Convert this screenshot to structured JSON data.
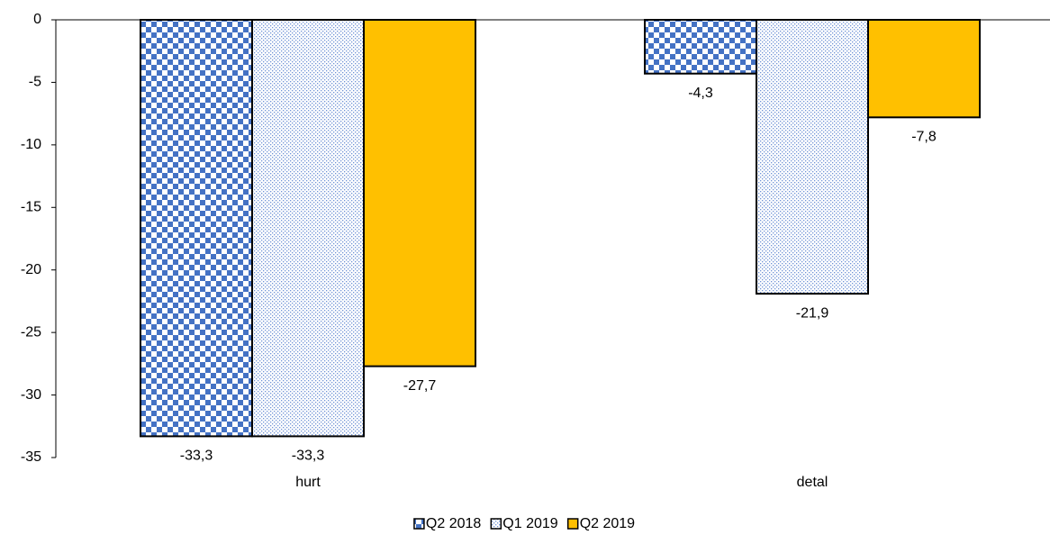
{
  "chart_data": {
    "type": "bar",
    "categories": [
      "hurt",
      "detal"
    ],
    "series": [
      {
        "name": "Q2 2018",
        "color": "#4472c4",
        "pattern": "checker",
        "values": [
          -33.3,
          -4.3
        ],
        "value_labels": [
          "-33,3",
          "-4,3"
        ]
      },
      {
        "name": "Q1 2019",
        "color": "#4472c4",
        "pattern": "dots",
        "values": [
          -33.3,
          -21.9
        ],
        "value_labels": [
          "-33,3",
          "-21,9"
        ]
      },
      {
        "name": "Q2 2019",
        "color": "#ffc000",
        "pattern": "solid",
        "values": [
          -27.7,
          -7.8
        ],
        "value_labels": [
          "-27,7",
          "-7,8"
        ]
      }
    ],
    "ylim": [
      -35,
      0
    ],
    "yticks": [
      0,
      -5,
      -10,
      -15,
      -20,
      -25,
      -30,
      -35
    ],
    "legend": "bottom"
  }
}
